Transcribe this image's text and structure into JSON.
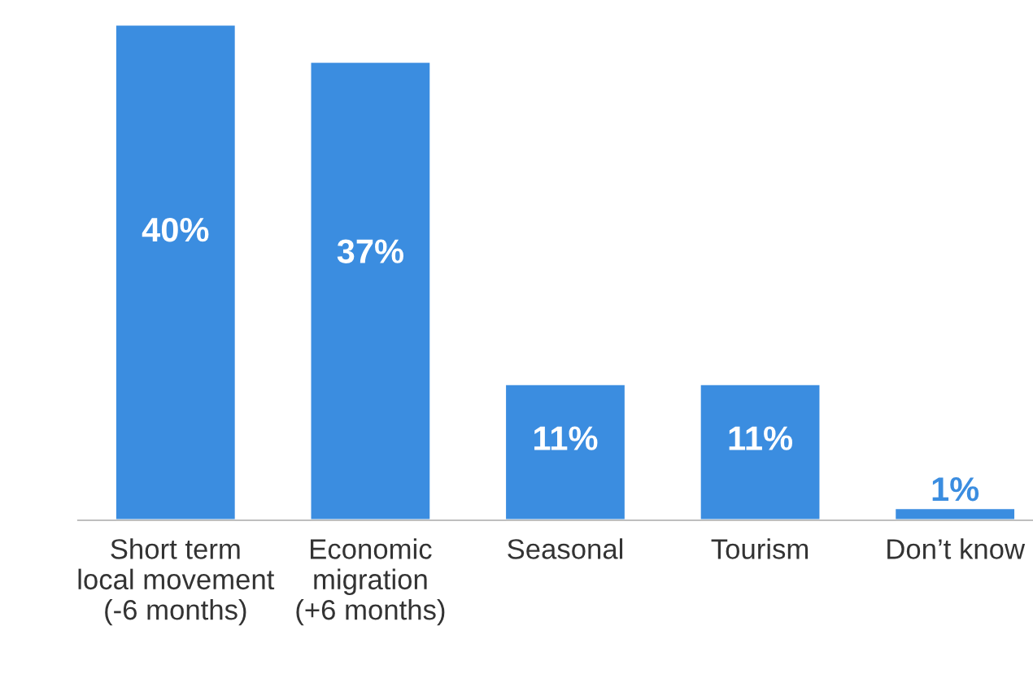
{
  "chart_data": {
    "type": "bar",
    "categories": [
      "Short term\nlocal movement\n(-6 months)",
      "Economic\nmigration\n(+6 months)",
      "Seasonal",
      "Tourism",
      "Don’t know"
    ],
    "values": [
      40,
      37,
      11,
      11,
      1
    ],
    "value_labels": [
      "40%",
      "37%",
      "11%",
      "11%",
      "1%"
    ],
    "color": "#3b8de0",
    "grid": false
  }
}
